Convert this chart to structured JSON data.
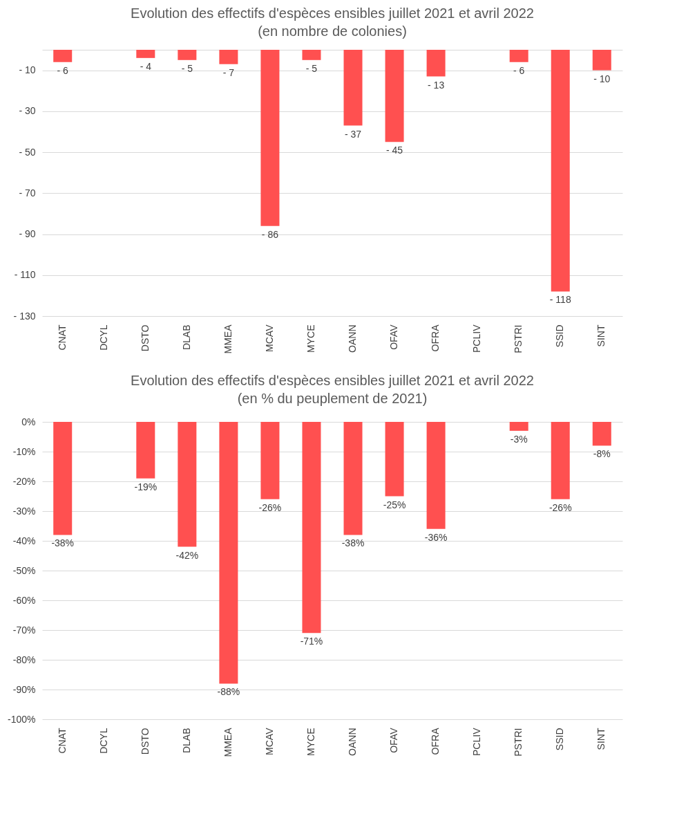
{
  "chart_data": [
    {
      "type": "bar",
      "title": "Evolution des effectifs d'espèces ensibles juillet 2021 et avril 2022",
      "subtitle": "(en nombre de colonies)",
      "categories": [
        "CNAT",
        "DCYL",
        "DSTO",
        "DLAB",
        "MMEA",
        "MCAV",
        "MYCE",
        "OANN",
        "OFAV",
        "OFRA",
        "PCLIV",
        "PSTRI",
        "SSID",
        "SINT"
      ],
      "values": [
        -6,
        null,
        -4,
        -5,
        -7,
        -86,
        -5,
        -37,
        -45,
        -13,
        null,
        -6,
        -118,
        -10
      ],
      "value_labels": [
        "- 6",
        null,
        "- 4",
        "- 5",
        "- 7",
        "- 86",
        "- 5",
        "- 37",
        "- 45",
        "- 13",
        null,
        "- 6",
        "- 118",
        "- 10"
      ],
      "color": "#ff5050",
      "ylim": [
        -130,
        0
      ],
      "yticks": [
        {
          "value": 0,
          "label": null
        },
        {
          "value": -10,
          "label": "- 10"
        },
        {
          "value": -30,
          "label": "- 30"
        },
        {
          "value": -50,
          "label": "- 50"
        },
        {
          "value": -70,
          "label": "- 70"
        },
        {
          "value": -90,
          "label": "- 90"
        },
        {
          "value": -110,
          "label": "- 110"
        },
        {
          "value": -130,
          "label": "- 130"
        }
      ],
      "grid": "y"
    },
    {
      "type": "bar",
      "title": "Evolution des effectifs d'espèces ensibles juillet 2021 et avril 2022",
      "subtitle": "(en % du peuplement de 2021)",
      "categories": [
        "CNAT",
        "DCYL",
        "DSTO",
        "DLAB",
        "MMEA",
        "MCAV",
        "MYCE",
        "OANN",
        "OFAV",
        "OFRA",
        "PCLIV",
        "PSTRI",
        "SSID",
        "SINT"
      ],
      "values": [
        -38,
        null,
        -19,
        -42,
        -88,
        -26,
        -71,
        -38,
        -25,
        -36,
        null,
        -3,
        -26,
        -8
      ],
      "value_labels": [
        "-38%",
        null,
        "-19%",
        "-42%",
        "-88%",
        "-26%",
        "-71%",
        "-38%",
        "-25%",
        "-36%",
        null,
        "-3%",
        "-26%",
        "-8%"
      ],
      "color": "#ff5050",
      "ylim": [
        -100,
        0
      ],
      "yticks": [
        {
          "value": 0,
          "label": "0%"
        },
        {
          "value": -10,
          "label": "-10%"
        },
        {
          "value": -20,
          "label": "-20%"
        },
        {
          "value": -30,
          "label": "-30%"
        },
        {
          "value": -40,
          "label": "-40%"
        },
        {
          "value": -50,
          "label": "-50%"
        },
        {
          "value": -60,
          "label": "-60%"
        },
        {
          "value": -70,
          "label": "-70%"
        },
        {
          "value": -80,
          "label": "-80%"
        },
        {
          "value": -90,
          "label": "-90%"
        },
        {
          "value": -100,
          "label": "-100%"
        }
      ],
      "grid": "y"
    }
  ]
}
